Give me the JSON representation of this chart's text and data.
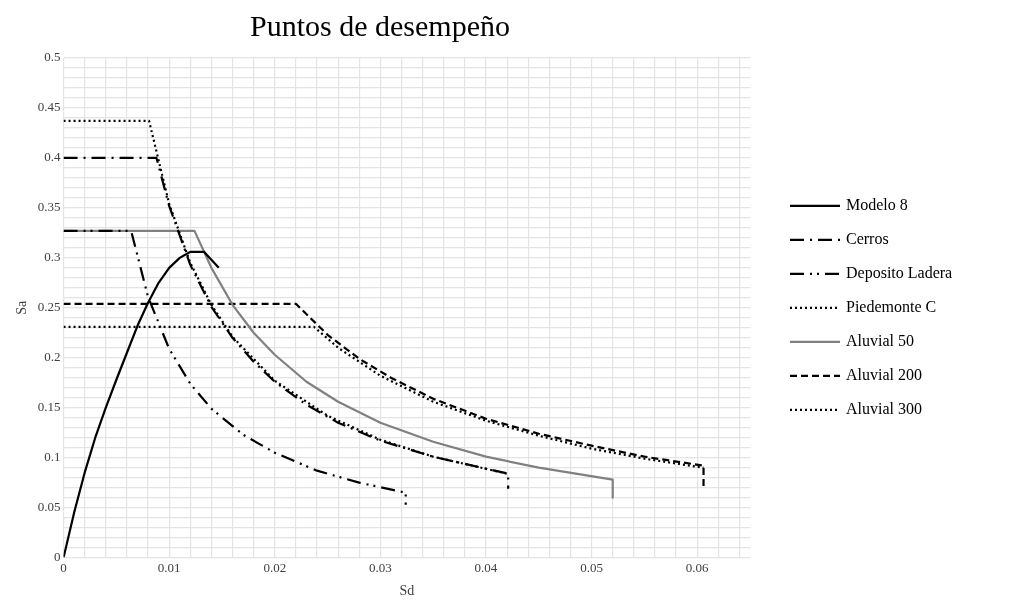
{
  "chart_data": {
    "type": "line",
    "title": "Puntos de desempeño",
    "xlabel": "Sd",
    "ylabel": "Sa",
    "xlim": [
      0,
      0.065
    ],
    "xticks": [
      0,
      {
        "value": 0.002,
        "label": null
      },
      {
        "value": 0.004,
        "label": null
      },
      {
        "value": 0.006,
        "label": null
      },
      {
        "value": 0.008,
        "label": null
      },
      0.01,
      {
        "value": 0.012,
        "label": null
      },
      {
        "value": 0.014,
        "label": null
      },
      {
        "value": 0.016,
        "label": null
      },
      {
        "value": 0.018,
        "label": null
      },
      0.02,
      {
        "value": 0.022,
        "label": null
      },
      {
        "value": 0.024,
        "label": null
      },
      {
        "value": 0.026,
        "label": null
      },
      {
        "value": 0.028,
        "label": null
      },
      0.03,
      {
        "value": 0.032,
        "label": null
      },
      {
        "value": 0.034,
        "label": null
      },
      {
        "value": 0.036,
        "label": null
      },
      {
        "value": 0.038,
        "label": null
      },
      0.04,
      {
        "value": 0.042,
        "label": null
      },
      {
        "value": 0.044,
        "label": null
      },
      {
        "value": 0.046,
        "label": null
      },
      {
        "value": 0.048,
        "label": null
      },
      0.05,
      {
        "value": 0.052,
        "label": null
      },
      {
        "value": 0.054,
        "label": null
      },
      {
        "value": 0.056,
        "label": null
      },
      {
        "value": 0.058,
        "label": null
      },
      0.06,
      {
        "value": 0.062,
        "label": null
      },
      {
        "value": 0.064,
        "label": null
      }
    ],
    "ylim": [
      0,
      0.5
    ],
    "yticks": [
      0,
      {
        "value": 0.01,
        "label": null
      },
      {
        "value": 0.02,
        "label": null
      },
      {
        "value": 0.03,
        "label": null
      },
      {
        "value": 0.04,
        "label": null
      },
      0.05,
      {
        "value": 0.06,
        "label": null
      },
      {
        "value": 0.07,
        "label": null
      },
      {
        "value": 0.08,
        "label": null
      },
      {
        "value": 0.09,
        "label": null
      },
      0.1,
      {
        "value": 0.11,
        "label": null
      },
      {
        "value": 0.12,
        "label": null
      },
      {
        "value": 0.13,
        "label": null
      },
      {
        "value": 0.14,
        "label": null
      },
      0.15,
      {
        "value": 0.16,
        "label": null
      },
      {
        "value": 0.17,
        "label": null
      },
      {
        "value": 0.18,
        "label": null
      },
      {
        "value": 0.19,
        "label": null
      },
      0.2,
      {
        "value": 0.21,
        "label": null
      },
      {
        "value": 0.22,
        "label": null
      },
      {
        "value": 0.23,
        "label": null
      },
      {
        "value": 0.24,
        "label": null
      },
      0.25,
      {
        "value": 0.26,
        "label": null
      },
      {
        "value": 0.27,
        "label": null
      },
      {
        "value": 0.28,
        "label": null
      },
      {
        "value": 0.29,
        "label": null
      },
      0.3,
      {
        "value": 0.31,
        "label": null
      },
      {
        "value": 0.32,
        "label": null
      },
      {
        "value": 0.33,
        "label": null
      },
      {
        "value": 0.34,
        "label": null
      },
      0.35,
      {
        "value": 0.36,
        "label": null
      },
      {
        "value": 0.37,
        "label": null
      },
      {
        "value": 0.38,
        "label": null
      },
      {
        "value": 0.39,
        "label": null
      },
      0.4,
      {
        "value": 0.41,
        "label": null
      },
      {
        "value": 0.42,
        "label": null
      },
      {
        "value": 0.43,
        "label": null
      },
      {
        "value": 0.44,
        "label": null
      },
      0.45,
      {
        "value": 0.46,
        "label": null
      },
      {
        "value": 0.47,
        "label": null
      },
      {
        "value": 0.48,
        "label": null
      },
      {
        "value": 0.49,
        "label": null
      },
      0.5
    ],
    "grid": true,
    "legend": "right",
    "marker": "none",
    "series": [
      {
        "name": "Modelo 8",
        "color": "#000000",
        "line_style": "solid",
        "x": [
          0,
          0.001,
          0.002,
          0.003,
          0.004,
          0.005,
          0.006,
          0.007,
          0.008,
          0.009,
          0.01,
          0.011,
          0.012,
          0.0133,
          0.0147
        ],
        "values": [
          0,
          0.045,
          0.085,
          0.12,
          0.15,
          0.178,
          0.205,
          0.232,
          0.255,
          0.275,
          0.29,
          0.3,
          0.306,
          0.306,
          0.29
        ]
      },
      {
        "name": "Cerros",
        "color": "#000000",
        "line_style": "dashdot",
        "x": [
          0,
          0.0088,
          0.01,
          0.012,
          0.014,
          0.016,
          0.018,
          0.02,
          0.023,
          0.026,
          0.03,
          0.035,
          0.0421,
          0.0421
        ],
        "values": [
          0.4,
          0.4,
          0.352,
          0.293,
          0.251,
          0.22,
          0.196,
          0.176,
          0.153,
          0.135,
          0.117,
          0.101,
          0.084,
          0.069
        ]
      },
      {
        "name": "Deposito Ladera",
        "color": "#000000",
        "line_style": "dashdotdot",
        "x": [
          0,
          0.0064,
          0.008,
          0.01,
          0.012,
          0.014,
          0.017,
          0.02,
          0.024,
          0.028,
          0.0324,
          0.0324
        ],
        "values": [
          0.327,
          0.327,
          0.261,
          0.209,
          0.174,
          0.149,
          0.123,
          0.105,
          0.087,
          0.075,
          0.065,
          0.053
        ]
      },
      {
        "name": "Piedemonte C",
        "color": "#000000",
        "line_style": "dotted",
        "x": [
          0,
          0.0081,
          0.01,
          0.012,
          0.014,
          0.016,
          0.02,
          0.025,
          0.03,
          0.035,
          0.042
        ],
        "values": [
          0.437,
          0.437,
          0.354,
          0.295,
          0.253,
          0.221,
          0.177,
          0.142,
          0.118,
          0.101,
          0.084
        ]
      },
      {
        "name": "Aluvial 50",
        "color": "#808080",
        "line_style": "solid",
        "x": [
          0,
          0.0124,
          0.014,
          0.016,
          0.018,
          0.02,
          0.023,
          0.026,
          0.03,
          0.035,
          0.04,
          0.045,
          0.052,
          0.052
        ],
        "values": [
          0.327,
          0.327,
          0.29,
          0.253,
          0.225,
          0.203,
          0.176,
          0.156,
          0.135,
          0.116,
          0.101,
          0.09,
          0.078,
          0.06
        ]
      },
      {
        "name": "Aluvial 200",
        "color": "#000000",
        "line_style": "dashed",
        "x": [
          0,
          0.022,
          0.025,
          0.028,
          0.031,
          0.035,
          0.04,
          0.045,
          0.05,
          0.055,
          0.0606,
          0.0606
        ],
        "values": [
          0.254,
          0.254,
          0.223,
          0.199,
          0.18,
          0.159,
          0.139,
          0.124,
          0.112,
          0.101,
          0.092,
          0.071
        ]
      },
      {
        "name": "Aluvial 300",
        "color": "#000000",
        "line_style": "dotted",
        "x": [
          0,
          0.0237,
          0.026,
          0.03,
          0.035,
          0.04,
          0.045,
          0.05,
          0.055,
          0.0606
        ],
        "values": [
          0.231,
          0.231,
          0.21,
          0.182,
          0.156,
          0.137,
          0.122,
          0.109,
          0.099,
          0.09
        ]
      }
    ]
  }
}
